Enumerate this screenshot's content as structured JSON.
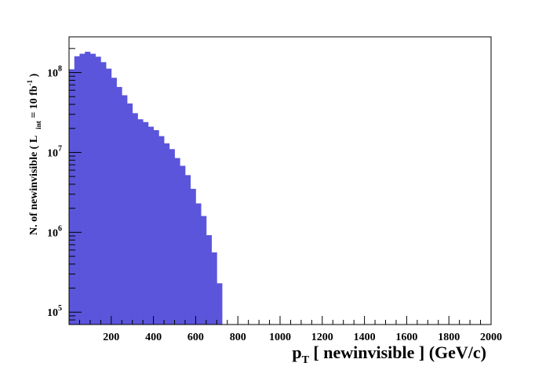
{
  "chart_data": {
    "type": "bar",
    "style": "histogram",
    "xlabel": "p_T [ newinvisible ] (GeV/c)",
    "xlabel_parts": {
      "main": "p",
      "sub": "T",
      "rest": " [ newinvisible ] (GeV/c)"
    },
    "ylabel_parts": {
      "pre": "N. of newinvisible ( L",
      "sub": "int",
      "mid": " = 10 fb",
      "sup": "-1",
      "post": " )"
    },
    "xlim": [
      0,
      2000
    ],
    "ylim": [
      70000,
      280000000
    ],
    "yscale": "log",
    "bin_width": 25,
    "x_ticks": [
      200,
      400,
      600,
      800,
      1000,
      1200,
      1400,
      1600,
      1800,
      2000
    ],
    "y_ticks": [
      {
        "value": 100000,
        "base": "10",
        "exp": "5"
      },
      {
        "value": 1000000,
        "base": "10",
        "exp": "6"
      },
      {
        "value": 10000000,
        "base": "10",
        "exp": "7"
      },
      {
        "value": 100000000,
        "base": "10",
        "exp": "8"
      }
    ],
    "bin_lo": [
      0,
      25,
      50,
      75,
      100,
      125,
      150,
      175,
      200,
      225,
      250,
      275,
      300,
      325,
      350,
      375,
      400,
      425,
      450,
      475,
      500,
      525,
      550,
      575,
      600,
      625,
      650,
      675,
      700
    ],
    "values": [
      110000000,
      160000000,
      172000000,
      182000000,
      172000000,
      158000000,
      135000000,
      112000000,
      86000000,
      66000000,
      52000000,
      41000000,
      31000000,
      26000000,
      24000000,
      21000000,
      19000000,
      16000000,
      13000000,
      11000000,
      8500000,
      6800000,
      5200000,
      3500000,
      2300000,
      1600000,
      920000,
      560000,
      230000
    ],
    "fill_color": "#5b55db",
    "grid": false
  }
}
